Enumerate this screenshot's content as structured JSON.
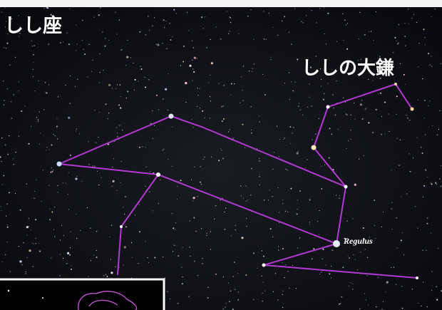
{
  "title": "しし座",
  "labels": {
    "sickle": "ししの大鎌",
    "star": "Regulus"
  }
}
